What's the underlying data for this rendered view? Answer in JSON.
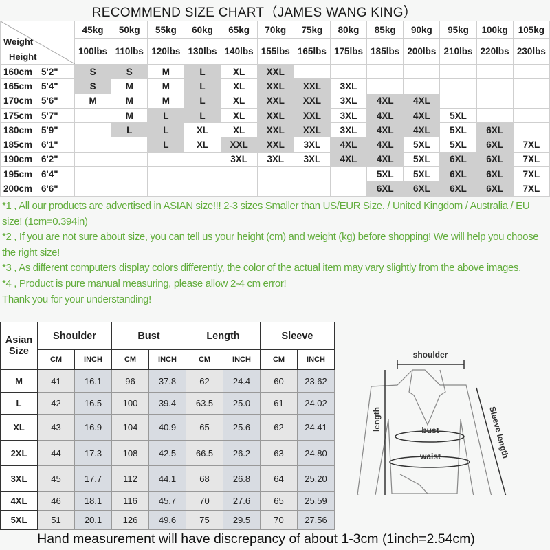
{
  "title": "RECOMMEND SIZE CHART（JAMES WANG KING）",
  "size_chart": {
    "corner_weight": "Weight",
    "corner_height": "Height",
    "weights_kg": [
      "45kg",
      "50kg",
      "55kg",
      "60kg",
      "65kg",
      "70kg",
      "75kg",
      "80kg",
      "85kg",
      "90kg",
      "95kg",
      "100kg",
      "105kg"
    ],
    "weights_lbs": [
      "100lbs",
      "110lbs",
      "120lbs",
      "130lbs",
      "140lbs",
      "155lbs",
      "165lbs",
      "175lbs",
      "185lbs",
      "200lbs",
      "210lbs",
      "220lbs",
      "230lbs"
    ],
    "shade_color": "#cfcfcf",
    "rows": [
      {
        "cm": "160cm",
        "ft": "5'2\"",
        "sizes": [
          "S",
          "S",
          "M",
          "L",
          "XL",
          "XXL",
          "",
          "",
          "",
          "",
          "",
          "",
          ""
        ],
        "shaded": [
          1,
          1,
          0,
          1,
          0,
          1,
          0,
          0,
          0,
          0,
          0,
          0,
          0
        ]
      },
      {
        "cm": "165cm",
        "ft": "5'4\"",
        "sizes": [
          "S",
          "M",
          "M",
          "L",
          "XL",
          "XXL",
          "XXL",
          "3XL",
          "",
          "",
          "",
          "",
          ""
        ],
        "shaded": [
          1,
          0,
          0,
          1,
          0,
          1,
          1,
          0,
          0,
          0,
          0,
          0,
          0
        ]
      },
      {
        "cm": "170cm",
        "ft": "5'6\"",
        "sizes": [
          "M",
          "M",
          "M",
          "L",
          "XL",
          "XXL",
          "XXL",
          "3XL",
          "4XL",
          "4XL",
          "",
          "",
          ""
        ],
        "shaded": [
          0,
          0,
          0,
          1,
          0,
          1,
          1,
          0,
          1,
          1,
          0,
          0,
          0
        ]
      },
      {
        "cm": "175cm",
        "ft": "5'7\"",
        "sizes": [
          "",
          "M",
          "L",
          "L",
          "XL",
          "XXL",
          "XXL",
          "3XL",
          "4XL",
          "4XL",
          "5XL",
          "",
          ""
        ],
        "shaded": [
          0,
          0,
          1,
          1,
          0,
          1,
          1,
          0,
          1,
          1,
          0,
          0,
          0
        ]
      },
      {
        "cm": "180cm",
        "ft": "5'9\"",
        "sizes": [
          "",
          "L",
          "L",
          "XL",
          "XL",
          "XXL",
          "XXL",
          "3XL",
          "4XL",
          "4XL",
          "5XL",
          "6XL",
          ""
        ],
        "shaded": [
          0,
          1,
          1,
          0,
          0,
          1,
          1,
          0,
          1,
          1,
          0,
          1,
          0
        ]
      },
      {
        "cm": "185cm",
        "ft": "6'1\"",
        "sizes": [
          "",
          "",
          "L",
          "XL",
          "XXL",
          "XXL",
          "3XL",
          "4XL",
          "4XL",
          "5XL",
          "5XL",
          "6XL",
          "7XL"
        ],
        "shaded": [
          0,
          0,
          1,
          0,
          1,
          1,
          0,
          1,
          1,
          0,
          0,
          1,
          0
        ]
      },
      {
        "cm": "190cm",
        "ft": "6'2\"",
        "sizes": [
          "",
          "",
          "",
          "",
          "3XL",
          "3XL",
          "3XL",
          "4XL",
          "4XL",
          "5XL",
          "6XL",
          "6XL",
          "7XL"
        ],
        "shaded": [
          0,
          0,
          0,
          0,
          0,
          0,
          0,
          1,
          1,
          0,
          1,
          1,
          0
        ]
      },
      {
        "cm": "195cm",
        "ft": "6'4\"",
        "sizes": [
          "",
          "",
          "",
          "",
          "",
          "",
          "",
          "",
          "5XL",
          "5XL",
          "6XL",
          "6XL",
          "7XL"
        ],
        "shaded": [
          0,
          0,
          0,
          0,
          0,
          0,
          0,
          0,
          0,
          0,
          1,
          1,
          0
        ]
      },
      {
        "cm": "200cm",
        "ft": "6'6\"",
        "sizes": [
          "",
          "",
          "",
          "",
          "",
          "",
          "",
          "",
          "6XL",
          "6XL",
          "6XL",
          "6XL",
          "7XL"
        ],
        "shaded": [
          0,
          0,
          0,
          0,
          0,
          0,
          0,
          0,
          1,
          1,
          1,
          1,
          0
        ]
      }
    ]
  },
  "notes": {
    "color": "#62ad3c",
    "lines": [
      "*1 , All our products are advertised in ASIAN size!!! 2-3 sizes Smaller than US/EUR Size. / United Kingdom / Australia / EU size! (1cm=0.394in)",
      "*2 , If you are not sure about size, you can tell us your height (cm) and weight (kg) before shopping! We will help you choose the right size!",
      "*3 , As different computers display colors differently, the color of the actual item may vary slightly from the above images.",
      "*4 , Product is pure manual measuring, please allow 2-4 cm error!",
      "Thank you for your understanding!"
    ]
  },
  "measurements": {
    "size_header": "Asian Size",
    "groups": [
      "Shoulder",
      "Bust",
      "Length",
      "Sleeve"
    ],
    "units": [
      "CM",
      "INCH"
    ],
    "rows": [
      {
        "size": "M",
        "values": [
          "41",
          "16.1",
          "96",
          "37.8",
          "62",
          "24.4",
          "60",
          "23.62"
        ]
      },
      {
        "size": "L",
        "values": [
          "42",
          "16.5",
          "100",
          "39.4",
          "63.5",
          "25.0",
          "61",
          "24.02"
        ]
      },
      {
        "size": "XL",
        "values": [
          "43",
          "16.9",
          "104",
          "40.9",
          "65",
          "25.6",
          "62",
          "24.41"
        ]
      },
      {
        "size": "2XL",
        "values": [
          "44",
          "17.3",
          "108",
          "42.5",
          "66.5",
          "26.2",
          "63",
          "24.80"
        ]
      },
      {
        "size": "3XL",
        "values": [
          "45",
          "17.7",
          "112",
          "44.1",
          "68",
          "26.8",
          "64",
          "25.20"
        ]
      },
      {
        "size": "4XL",
        "values": [
          "46",
          "18.1",
          "116",
          "45.7",
          "70",
          "27.6",
          "65",
          "25.59"
        ]
      },
      {
        "size": "5XL",
        "values": [
          "51",
          "20.1",
          "126",
          "49.6",
          "75",
          "29.5",
          "70",
          "27.56"
        ]
      }
    ]
  },
  "diagram": {
    "shoulder": "shoulder",
    "length": "length",
    "bust": "bust",
    "waist": "waist",
    "sleeve": "Sleeve length"
  },
  "footer": "Hand measurement will have discrepancy of about 1-3cm (1inch=2.54cm)"
}
